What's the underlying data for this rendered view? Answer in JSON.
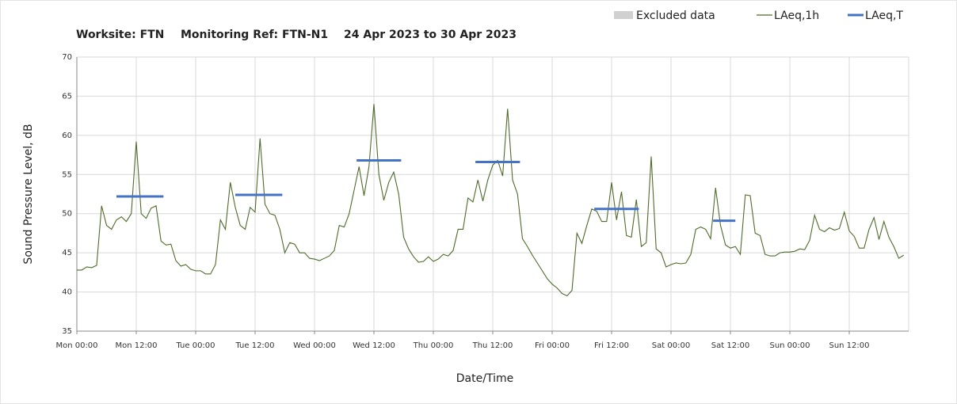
{
  "chart_data": {
    "type": "line",
    "title": [
      "Worksite: FTN",
      "Monitoring Ref: FTN-N1",
      "24 Apr 2023 to 30 Apr 2023"
    ],
    "x_label": "Date/Time",
    "y_label": "Sound Pressure Level, dB",
    "legend": [
      {
        "name": "Excluded data",
        "color": "#d0d0d0"
      }
    ],
    "xlim": [
      0,
      168
    ],
    "ylim": [
      35,
      70
    ],
    "xticks": [
      {
        "value": 0,
        "label": "Mon 00:00"
      },
      {
        "value": 12,
        "label": "Mon 12:00"
      },
      {
        "value": 24,
        "label": "Tue 00:00"
      },
      {
        "value": 36,
        "label": "Tue 12:00"
      },
      {
        "value": 48,
        "label": "Wed 00:00"
      },
      {
        "value": 60,
        "label": "Wed 12:00"
      },
      {
        "value": 72,
        "label": "Thu 00:00"
      },
      {
        "value": 84,
        "label": "Thu 12:00"
      },
      {
        "value": 96,
        "label": "Fri 00:00"
      },
      {
        "value": 108,
        "label": "Fri 12:00"
      },
      {
        "value": 120,
        "label": "Sat 00:00"
      },
      {
        "value": 132,
        "label": "Sat 12:00"
      },
      {
        "value": 144,
        "label": "Sun 00:00"
      },
      {
        "value": 156,
        "label": "Sun 12:00"
      }
    ],
    "yticks": [
      35,
      40,
      45,
      50,
      55,
      60,
      65,
      70
    ],
    "grid": true,
    "series": [
      {
        "name": "LAeq,1h",
        "color": "#4f6b2a",
        "x": [
          0,
          1,
          2,
          3,
          4,
          5,
          6,
          7,
          8,
          9,
          10,
          11,
          12,
          13,
          14,
          15,
          16,
          17,
          18,
          19,
          20,
          21,
          22,
          23,
          24,
          25,
          26,
          27,
          28,
          29,
          30,
          31,
          32,
          33,
          34,
          35,
          36,
          37,
          38,
          39,
          40,
          41,
          42,
          43,
          44,
          45,
          46,
          47,
          48,
          49,
          50,
          51,
          52,
          53,
          54,
          55,
          56,
          57,
          58,
          59,
          60,
          61,
          62,
          63,
          64,
          65,
          66,
          67,
          68,
          69,
          70,
          71,
          72,
          73,
          74,
          75,
          76,
          77,
          78,
          79,
          80,
          81,
          82,
          83,
          84,
          85,
          86,
          87,
          88,
          89,
          90,
          91,
          92,
          93,
          94,
          95,
          96,
          97,
          98,
          99,
          100,
          101,
          102,
          103,
          104,
          105,
          106,
          107,
          108,
          109,
          110,
          111,
          112,
          113,
          114,
          115,
          116,
          117,
          118,
          119,
          120,
          121,
          122,
          123,
          124,
          125,
          126,
          127,
          128,
          129,
          130,
          131,
          132,
          133,
          134,
          135,
          136,
          137,
          138,
          139,
          140,
          141,
          142,
          143,
          144,
          145,
          146,
          147,
          148,
          149,
          150,
          151,
          152,
          153,
          154,
          155,
          156,
          157,
          158,
          159,
          160,
          161,
          162,
          163,
          164,
          165,
          166,
          167
        ],
        "values": [
          42.8,
          42.8,
          43.2,
          43.1,
          43.4,
          51,
          48.5,
          48,
          49.2,
          49.6,
          49,
          50,
          59.2,
          50,
          49.4,
          50.7,
          51,
          46.5,
          46,
          46.1,
          44,
          43.3,
          43.5,
          42.9,
          42.7,
          42.7,
          42.3,
          42.3,
          43.5,
          49.2,
          48,
          54,
          50.8,
          48.5,
          48,
          50.8,
          50.2,
          59.6,
          51.2,
          50,
          49.8,
          48,
          45,
          46.3,
          46.1,
          45,
          45,
          44.3,
          44.2,
          44,
          44.3,
          44.6,
          45.3,
          48.5,
          48.3,
          50,
          53,
          56,
          52.3,
          56,
          64,
          55,
          51.7,
          54,
          55.3,
          52.5,
          47,
          45.5,
          44.5,
          43.8,
          43.9,
          44.5,
          43.9,
          44.2,
          44.8,
          44.6,
          45.3,
          48,
          48,
          52,
          51.5,
          54.3,
          51.6,
          54.3,
          56.2,
          56.8,
          54.8,
          63.4,
          54.3,
          52.5,
          46.8,
          45.8,
          44.7,
          43.7,
          42.7,
          41.7,
          41,
          40.5,
          39.8,
          39.5,
          40.2,
          47.5,
          46.2,
          48.5,
          50.6,
          50.3,
          49,
          49,
          54,
          49.2,
          52.8,
          47.2,
          47,
          51.8,
          45.8,
          46.3,
          57.3,
          45.5,
          45,
          43.2,
          43.5,
          43.7,
          43.6,
          43.7,
          44.8,
          48,
          48.3,
          48,
          46.8,
          53.3,
          48.5,
          46,
          45.6,
          45.8,
          44.8,
          52.4,
          52.3,
          47.5,
          47.2,
          44.8,
          44.6,
          44.6,
          45,
          45.1,
          45.1,
          45.2,
          45.5,
          45.4,
          46.6,
          49.8,
          48,
          47.7,
          48.2,
          47.9,
          48.1,
          50.2,
          47.8,
          47.1,
          45.6,
          45.6,
          48,
          49.5,
          46.7,
          49,
          47,
          45.8,
          44.3,
          44.7
        ]
      },
      {
        "name": "LAeq,T",
        "color": "#4472c4",
        "segments": [
          {
            "x": [
              8,
              17.5
            ],
            "value": 52.2
          },
          {
            "x": [
              32,
              41.5
            ],
            "value": 52.4
          },
          {
            "x": [
              56.5,
              65.5
            ],
            "value": 56.8
          },
          {
            "x": [
              80.5,
              89.5
            ],
            "value": 56.6
          },
          {
            "x": [
              104.5,
              113.5
            ],
            "value": 50.6
          },
          {
            "x": [
              128.5,
              133
            ],
            "value": 49.1
          }
        ]
      }
    ]
  }
}
